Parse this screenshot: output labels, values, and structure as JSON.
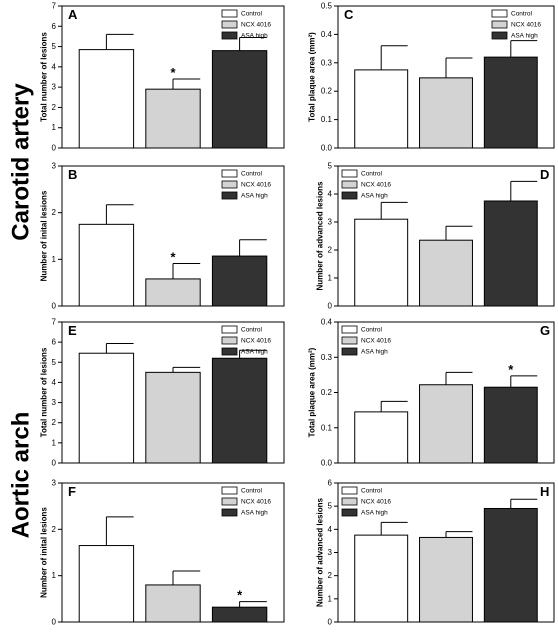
{
  "figure": {
    "row_labels": [
      "Carotid artery",
      "Aortic arch"
    ],
    "legend": [
      "Control",
      "NCX 4016",
      "ASA high"
    ],
    "colors": {
      "control": "#ffffff",
      "ncx": "#d3d3d3",
      "asa": "#333333",
      "axis": "#000000"
    }
  },
  "chart_data": [
    {
      "panel": "A",
      "type": "bar",
      "categories": [
        "Control",
        "NCX 4016",
        "ASA high"
      ],
      "values": [
        4.85,
        2.9,
        4.8
      ],
      "errors": [
        0.75,
        0.5,
        0.65
      ],
      "significant": [
        false,
        true,
        false
      ],
      "ylabel": "Total number of lesions",
      "ylim": [
        0,
        7
      ],
      "yticks": [
        "0",
        "1",
        "2",
        "3",
        "4",
        "5",
        "6",
        "7"
      ],
      "legend_placement": "top-right"
    },
    {
      "panel": "C",
      "type": "bar",
      "categories": [
        "Control",
        "NCX 4016",
        "ASA high"
      ],
      "values": [
        0.275,
        0.247,
        0.32
      ],
      "errors": [
        0.085,
        0.07,
        0.058
      ],
      "significant": [
        false,
        false,
        false
      ],
      "ylabel": "Total plaque area (mm²)",
      "ylim": [
        0,
        0.5
      ],
      "yticks": [
        "0.0",
        "0.1",
        "0.2",
        "0.3",
        "0.4",
        "0.5"
      ],
      "legend_placement": "top-right"
    },
    {
      "panel": "B",
      "type": "bar",
      "categories": [
        "Control",
        "NCX 4016",
        "ASA high"
      ],
      "values": [
        1.75,
        0.58,
        1.07
      ],
      "errors": [
        0.42,
        0.33,
        0.35
      ],
      "significant": [
        false,
        true,
        false
      ],
      "ylabel": "Number of inital lesions",
      "ylim": [
        0,
        3
      ],
      "yticks": [
        "0",
        "1",
        "2",
        "3"
      ],
      "legend_placement": "top-right"
    },
    {
      "panel": "D",
      "type": "bar",
      "categories": [
        "Control",
        "NCX 4016",
        "ASA high"
      ],
      "values": [
        3.1,
        2.35,
        3.75
      ],
      "errors": [
        0.6,
        0.5,
        0.7
      ],
      "significant": [
        false,
        false,
        false
      ],
      "ylabel": "Number of advanced lesions",
      "ylim": [
        0,
        5
      ],
      "yticks": [
        "0",
        "1",
        "2",
        "3",
        "4",
        "5"
      ],
      "legend_placement": "top-left"
    },
    {
      "panel": "E",
      "type": "bar",
      "categories": [
        "Control",
        "NCX 4016",
        "ASA high"
      ],
      "values": [
        5.45,
        4.5,
        5.2
      ],
      "errors": [
        0.48,
        0.25,
        0.4
      ],
      "significant": [
        false,
        false,
        false
      ],
      "ylabel": "Total number of lesions",
      "ylim": [
        0,
        7
      ],
      "yticks": [
        "0",
        "1",
        "2",
        "3",
        "4",
        "5",
        "6",
        "7"
      ],
      "legend_placement": "top-right"
    },
    {
      "panel": "G",
      "type": "bar",
      "categories": [
        "Control",
        "NCX 4016",
        "ASA high"
      ],
      "values": [
        0.145,
        0.222,
        0.215
      ],
      "errors": [
        0.03,
        0.035,
        0.032
      ],
      "significant": [
        false,
        false,
        true
      ],
      "ylabel": "Total plaque area (mm²)",
      "ylim": [
        0,
        0.4
      ],
      "yticks": [
        "0.0",
        "0.1",
        "0.2",
        "0.3",
        "0.4"
      ],
      "legend_placement": "top-left"
    },
    {
      "panel": "F",
      "type": "bar",
      "categories": [
        "Control",
        "NCX 4016",
        "ASA high"
      ],
      "values": [
        1.65,
        0.8,
        0.32
      ],
      "errors": [
        0.62,
        0.3,
        0.12
      ],
      "significant": [
        false,
        false,
        true
      ],
      "ylabel": "Number of inital lesions",
      "ylim": [
        0,
        3
      ],
      "yticks": [
        "0",
        "1",
        "2",
        "3"
      ],
      "legend_placement": "top-right"
    },
    {
      "panel": "H",
      "type": "bar",
      "categories": [
        "Control",
        "NCX 4016",
        "ASA high"
      ],
      "values": [
        3.75,
        3.65,
        4.9
      ],
      "errors": [
        0.55,
        0.25,
        0.4
      ],
      "significant": [
        false,
        false,
        false
      ],
      "ylabel": "Number of advanced lesions",
      "ylim": [
        0,
        6
      ],
      "yticks": [
        "0",
        "1",
        "2",
        "3",
        "4",
        "5",
        "6"
      ],
      "legend_placement": "top-left"
    }
  ]
}
